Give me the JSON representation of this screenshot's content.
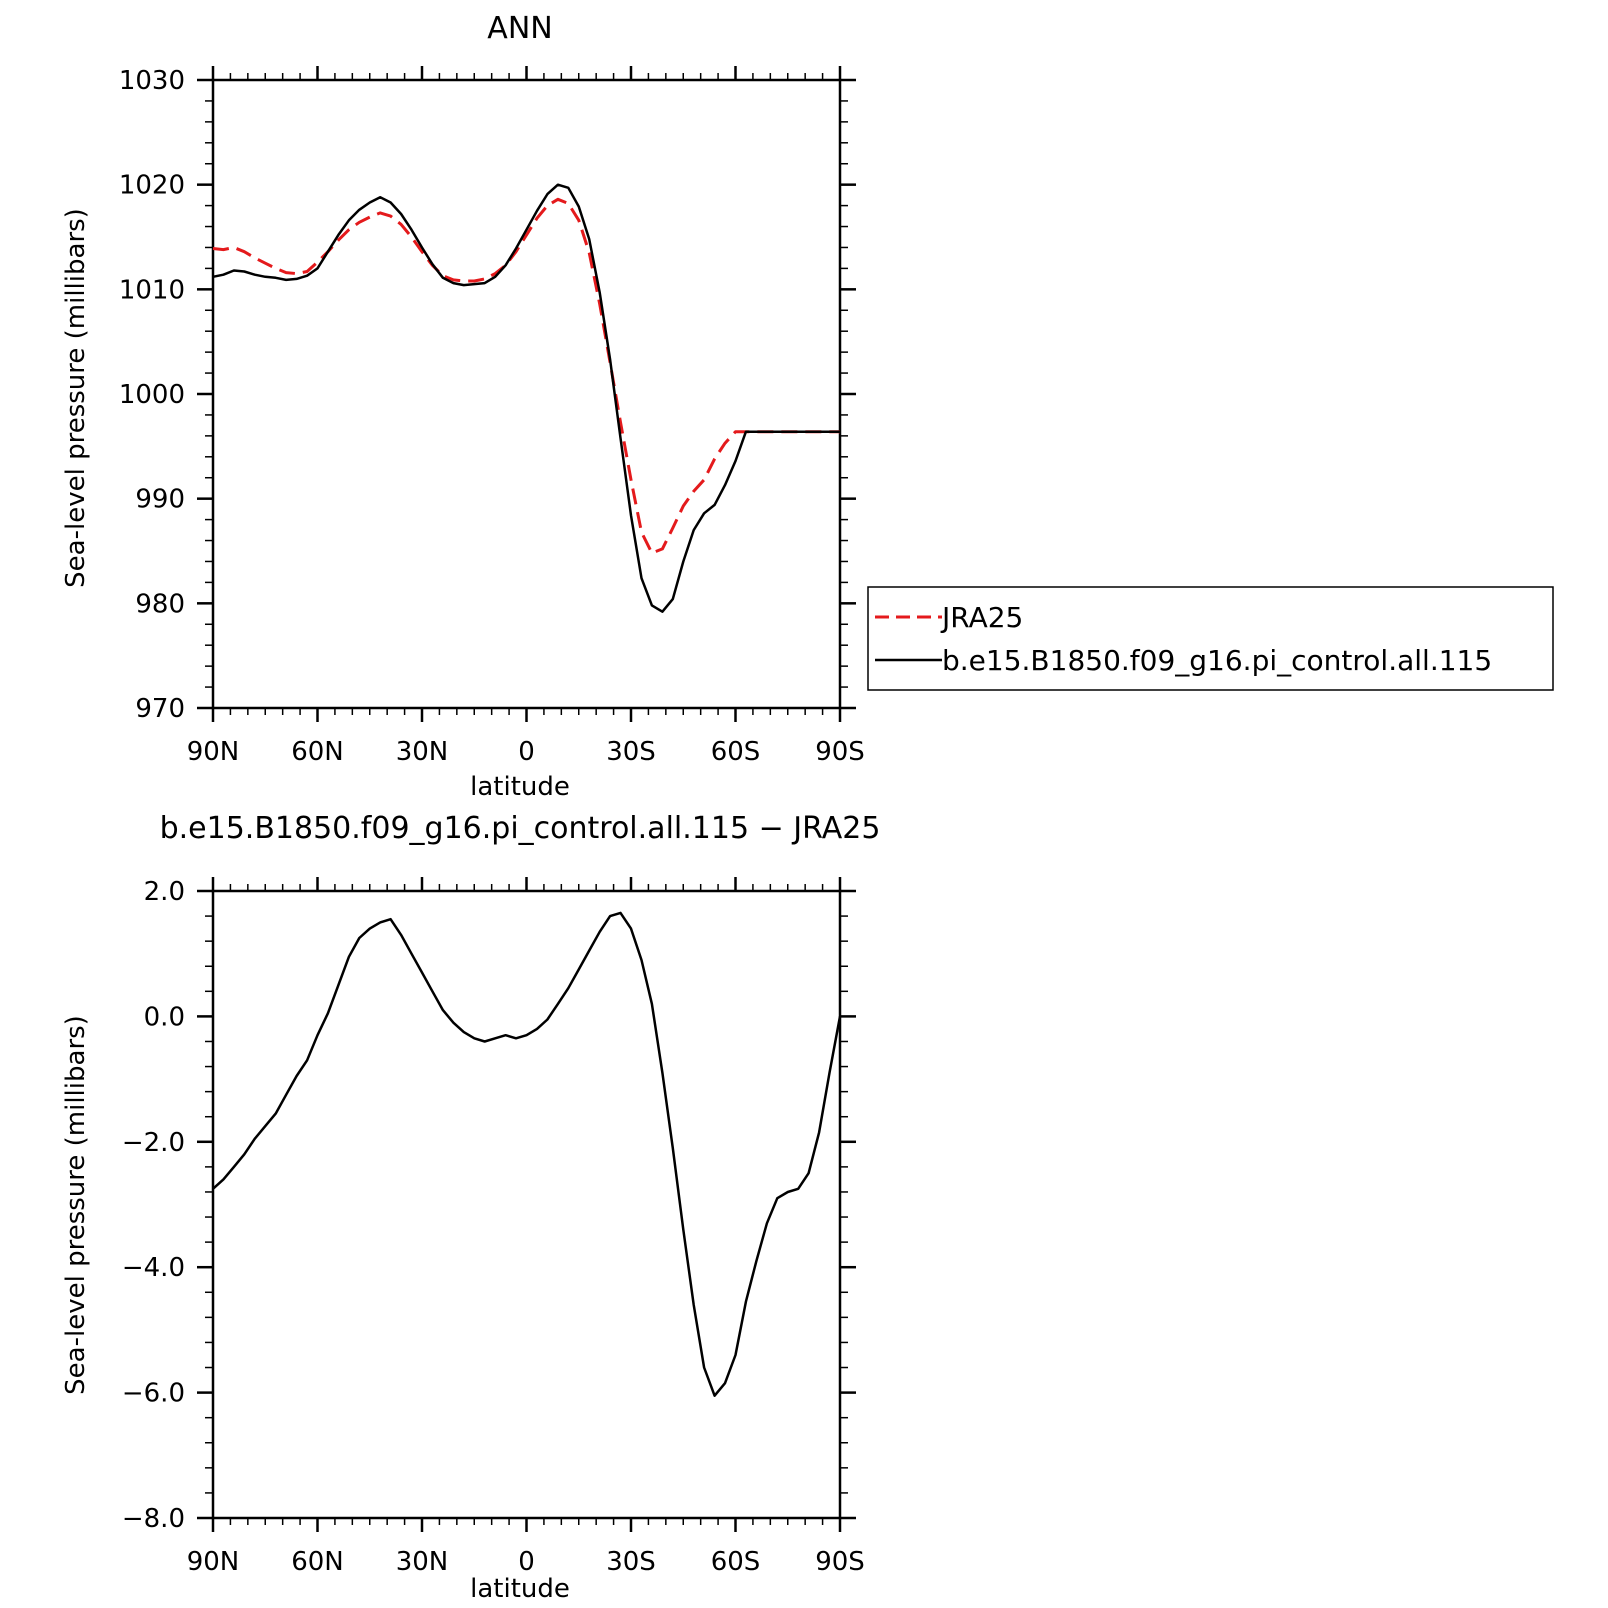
{
  "chart_data": [
    {
      "type": "line",
      "title": "ANN",
      "xlabel": "latitude",
      "ylabel": "Sea-level pressure (millibars)",
      "xlim": [
        90,
        -90
      ],
      "ylim": [
        970,
        1030
      ],
      "x_ticks": [
        "90N",
        "60N",
        "30N",
        "0",
        "30S",
        "60S",
        "90S"
      ],
      "y_ticks": [
        "970",
        "980",
        "990",
        "1000",
        "1010",
        "1020",
        "1030"
      ],
      "legend_position": "right",
      "series": [
        {
          "name": "JRA25",
          "color": "#e41a1c",
          "dash": "dashed",
          "x": [
            90,
            87,
            84,
            81,
            78,
            75,
            72,
            69,
            66,
            63,
            60,
            57,
            54,
            51,
            48,
            45,
            42,
            39,
            36,
            33,
            30,
            27,
            24,
            21,
            18,
            15,
            12,
            9,
            6,
            3,
            0,
            -3,
            -6,
            -9,
            -12,
            -15,
            -18,
            -21,
            -24,
            -27,
            -30,
            -33,
            -36,
            -39,
            -42,
            -45,
            -48,
            -51,
            -54,
            -57,
            -60,
            -63,
            -66,
            -69,
            -72,
            -75,
            -78,
            -81,
            -84,
            -87,
            -90
          ],
          "y": [
            1013.9,
            1013.8,
            1014.0,
            1013.6,
            1013.0,
            1012.5,
            1012.0,
            1011.6,
            1011.5,
            1011.7,
            1012.6,
            1013.6,
            1014.7,
            1015.7,
            1016.4,
            1016.9,
            1017.3,
            1017.0,
            1016.2,
            1015.0,
            1013.6,
            1012.3,
            1011.3,
            1010.9,
            1010.8,
            1010.8,
            1011.0,
            1011.5,
            1012.3,
            1013.6,
            1015.2,
            1016.8,
            1018.0,
            1018.6,
            1018.2,
            1016.6,
            1013.5,
            1008.6,
            1003.0,
            997.3,
            991.8,
            986.8,
            984.8,
            985.2,
            987.2,
            989.3,
            990.7,
            991.8,
            993.8,
            995.3,
            996.4,
            996.4,
            996.4,
            996.4,
            996.4,
            996.4,
            996.4,
            996.4,
            996.4,
            996.4,
            996.4
          ]
        },
        {
          "name": "b.e15.B1850.f09_g16.pi_control.all.115",
          "color": "#000000",
          "dash": "solid",
          "x": [
            90,
            87,
            84,
            81,
            78,
            75,
            72,
            69,
            66,
            63,
            60,
            57,
            54,
            51,
            48,
            45,
            42,
            39,
            36,
            33,
            30,
            27,
            24,
            21,
            18,
            15,
            12,
            9,
            6,
            3,
            0,
            -3,
            -6,
            -9,
            -12,
            -15,
            -18,
            -21,
            -24,
            -27,
            -30,
            -33,
            -36,
            -39,
            -42,
            -45,
            -48,
            -51,
            -54,
            -57,
            -60,
            -63,
            -66,
            -69,
            -72,
            -75,
            -78,
            -81,
            -84,
            -87,
            -90
          ],
          "y": [
            1011.2,
            1011.4,
            1011.8,
            1011.7,
            1011.4,
            1011.2,
            1011.1,
            1010.9,
            1011.0,
            1011.3,
            1012.0,
            1013.6,
            1015.2,
            1016.6,
            1017.6,
            1018.3,
            1018.8,
            1018.3,
            1017.2,
            1015.7,
            1014.0,
            1012.4,
            1011.1,
            1010.6,
            1010.4,
            1010.5,
            1010.6,
            1011.2,
            1012.3,
            1013.9,
            1015.7,
            1017.5,
            1019.1,
            1020.0,
            1019.7,
            1017.9,
            1014.8,
            1009.7,
            1003.3,
            995.8,
            988.4,
            982.4,
            979.8,
            979.2,
            980.4,
            984.0,
            987.0,
            988.6,
            989.4,
            991.3,
            993.6,
            996.4,
            996.4,
            996.4,
            996.4,
            996.4,
            996.4,
            996.4,
            996.4,
            996.4,
            996.4
          ]
        }
      ]
    },
    {
      "type": "line",
      "title": "b.e15.B1850.f09_g16.pi_control.all.115 − JRA25",
      "xlabel": "latitude",
      "ylabel": "Sea-level pressure (millibars)",
      "xlim": [
        90,
        -90
      ],
      "ylim": [
        -8.0,
        2.0
      ],
      "x_ticks": [
        "90N",
        "60N",
        "30N",
        "0",
        "30S",
        "60S",
        "90S"
      ],
      "y_ticks": [
        "−8.0",
        "−6.0",
        "−4.0",
        "−2.0",
        "0.0",
        "2.0"
      ],
      "series": [
        {
          "color": "#000000",
          "dash": "solid",
          "x": [
            90,
            87,
            84,
            81,
            78,
            75,
            72,
            69,
            66,
            63,
            60,
            57,
            54,
            51,
            48,
            45,
            42,
            39,
            36,
            33,
            30,
            27,
            24,
            21,
            18,
            15,
            12,
            9,
            6,
            3,
            0,
            -3,
            -6,
            -9,
            -12,
            -15,
            -18,
            -21,
            -24,
            -27,
            -30,
            -33,
            -36,
            -39,
            -42,
            -45,
            -48,
            -51,
            -54,
            -57,
            -60,
            -63,
            -66,
            -69,
            -72,
            -75,
            -78,
            -81,
            -84,
            -87,
            -90
          ],
          "y": [
            -2.75,
            -2.6,
            -2.4,
            -2.2,
            -1.95,
            -1.75,
            -1.55,
            -1.25,
            -0.95,
            -0.7,
            -0.3,
            0.05,
            0.5,
            0.95,
            1.25,
            1.4,
            1.5,
            1.55,
            1.3,
            1.0,
            0.7,
            0.4,
            0.1,
            -0.1,
            -0.25,
            -0.35,
            -0.4,
            -0.35,
            -0.3,
            -0.35,
            -0.3,
            -0.2,
            -0.05,
            0.2,
            0.45,
            0.75,
            1.05,
            1.35,
            1.6,
            1.65,
            1.4,
            0.9,
            0.2,
            -0.9,
            -2.1,
            -3.4,
            -4.6,
            -5.6,
            -6.05,
            -5.85,
            -5.4,
            -4.55,
            -3.9,
            -3.3,
            -2.9,
            -2.8,
            -2.75,
            -2.5,
            -1.85,
            -0.9,
            0.0
          ]
        }
      ]
    }
  ]
}
